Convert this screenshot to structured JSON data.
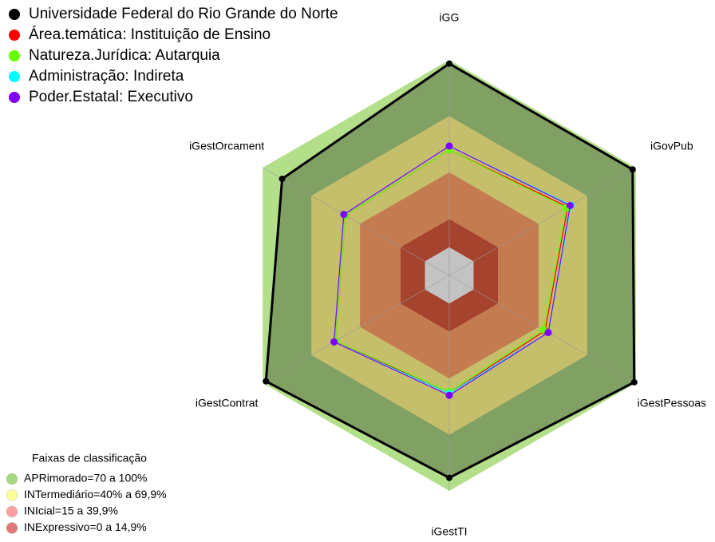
{
  "chart_data": {
    "type": "radar",
    "categories": [
      "iGG",
      "iGovPub",
      "iGestPessoas",
      "iGestTI",
      "iGestContrat",
      "iGestOrcament"
    ],
    "ylim": [
      -15,
      100
    ],
    "series": [
      {
        "name": "Universidade Federal do Rio Grande do Norte",
        "color": "#000000",
        "values": [
          98,
          98,
          99,
          93,
          98,
          88
        ]
      },
      {
        "name": "Área.temática: Instituição de Ensino",
        "color": "#ff0000",
        "values": [
          52,
          58,
          44,
          48,
          55,
          49
        ]
      },
      {
        "name": "Natureza.Jurídica: Autarquia",
        "color": "#66ff00",
        "values": [
          52,
          57,
          43,
          47,
          55,
          49
        ]
      },
      {
        "name": "Administração: Indireta",
        "color": "#00ffff",
        "values": [
          54,
          60,
          46,
          48,
          56,
          50
        ]
      },
      {
        "name": "Poder.Estatal: Executivo",
        "color": "#8000ff",
        "values": [
          54,
          59.5,
          46,
          49,
          56,
          50
        ]
      }
    ],
    "bands_title": "Faixas de classificação",
    "bands": [
      {
        "label": "APRimorado=70 a 100%",
        "from": 70,
        "to": 100,
        "color": "#b3de8a",
        "legend_color": "#a6d87f"
      },
      {
        "label": "INTermediário=40% a 69,9%",
        "from": 40,
        "to": 70,
        "color": "#c5bf6c",
        "legend_color": "#ffff99"
      },
      {
        "label": "INIcial=15 a 39,9%",
        "from": 15,
        "to": 40,
        "color": "#c47b50",
        "legend_color": "#ff9f9f"
      },
      {
        "label": "INExpressivo=0 a 14,9%",
        "from": 0,
        "to": 15,
        "color": "#a6432e",
        "legend_color": "#e07878"
      }
    ],
    "center_color": "#c3c3c3"
  }
}
